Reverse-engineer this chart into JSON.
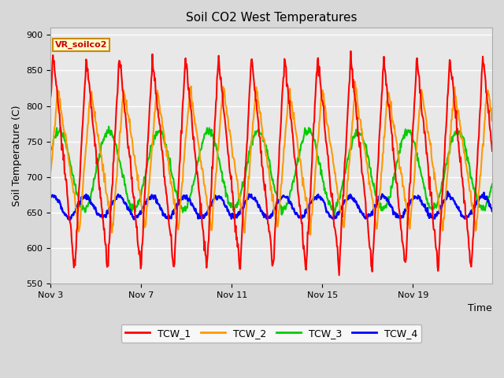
{
  "title": "Soil CO2 West Temperatures",
  "xlabel": "Time",
  "ylabel": "Soil Temperature (C)",
  "ylim": [
    550,
    910
  ],
  "yticks": [
    550,
    600,
    650,
    700,
    750,
    800,
    850,
    900
  ],
  "x_tick_positions": [
    0,
    4,
    8,
    12,
    16
  ],
  "x_tick_labels": [
    "Nov 3",
    "Nov 7",
    "Nov 11",
    "Nov 15",
    "Nov 19"
  ],
  "xlim": [
    0,
    19.5
  ],
  "annotation_text": "VR_soilco2",
  "annotation_bgcolor": "#ffffcc",
  "annotation_edgecolor": "#cc8800",
  "annotation_textcolor": "#cc0000",
  "legend_entries": [
    "TCW_1",
    "TCW_2",
    "TCW_3",
    "TCW_4"
  ],
  "line_colors": [
    "#ff0000",
    "#ff9900",
    "#00cc00",
    "#0000ff"
  ],
  "fig_bg_color": "#d8d8d8",
  "plot_bg_color": "#e8e8e8",
  "grid_color": "#ffffff",
  "figsize": [
    6.4,
    4.8
  ],
  "dpi": 100,
  "num_points": 800,
  "total_days": 19.5,
  "tcw1_base": 720,
  "tcw1_amp": 150,
  "tcw1_period": 1.46,
  "tcw2_base": 725,
  "tcw2_amp": 100,
  "tcw2_period": 1.46,
  "tcw3_base": 710,
  "tcw3_amp": 55,
  "tcw3_period": 2.2,
  "tcw4_base": 658,
  "tcw4_amp": 15,
  "tcw4_period": 1.46
}
